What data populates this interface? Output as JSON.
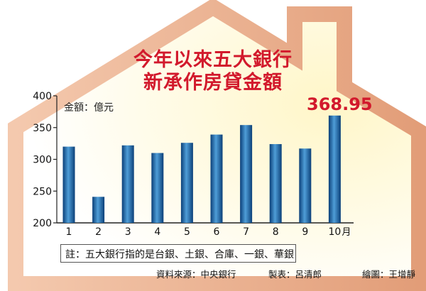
{
  "texts": {
    "title_line1": "今年以來五大銀行",
    "title_line2": "新承作房貸金額",
    "unit_label": "金額：億元",
    "highlight_value": "368.95",
    "footnote": "註：五大銀行指的是台銀、土銀、合庫、一銀、華銀",
    "source": "資料來源：中央銀行",
    "producer": "製表：呂清郎",
    "illustrator": "繪圖：王增靜"
  },
  "colors": {
    "title": "#d2192c",
    "highlight": "#d2192c",
    "bar_light": "#4f9ed8",
    "bar_dark": "#0b3f78",
    "house_edge": "#e7ad8a",
    "house_glow": "#fff3bf"
  },
  "chart_data": {
    "type": "bar",
    "title": "今年以來五大銀行新承作房貸金額",
    "ylabel": "金額：億元",
    "categories": [
      "1",
      "2",
      "3",
      "4",
      "5",
      "6",
      "7",
      "8",
      "9",
      "10"
    ],
    "x_unit_suffix": "月",
    "values": [
      320,
      241,
      322,
      310,
      326,
      339,
      354,
      324,
      317,
      368.95
    ],
    "ylim": [
      200,
      400
    ],
    "yticks": [
      200,
      250,
      300,
      350,
      400
    ],
    "annotations": [
      {
        "category": "10",
        "text": "368.95"
      }
    ],
    "grid": false,
    "legend": "none"
  }
}
